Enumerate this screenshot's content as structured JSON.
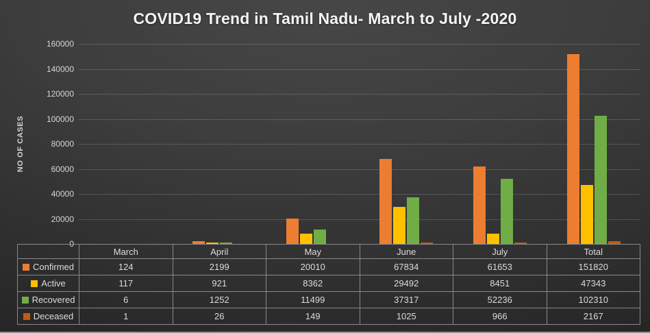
{
  "title": "COVID19 Trend in Tamil Nadu- March to July -2020",
  "chart_data": {
    "type": "bar",
    "title": "COVID19 Trend in Tamil Nadu- March to July -2020",
    "categories": [
      "March",
      "April",
      "May",
      "June",
      "July",
      "Total"
    ],
    "series": [
      {
        "name": "Confirmed",
        "color": "#ED7D31",
        "values": [
          124,
          2199,
          20010,
          67834,
          61653,
          151820
        ]
      },
      {
        "name": "Active",
        "color": "#FFC000",
        "values": [
          117,
          921,
          8362,
          29492,
          8451,
          47343
        ]
      },
      {
        "name": "Recovered",
        "color": "#70AD47",
        "values": [
          6,
          1252,
          11499,
          37317,
          52236,
          102310
        ]
      },
      {
        "name": "Deceased",
        "color": "#C55A11",
        "values": [
          1,
          26,
          149,
          1025,
          966,
          2167
        ]
      }
    ],
    "xlabel": "",
    "ylabel": "NO OF CASES",
    "ylim": [
      0,
      160000
    ],
    "yticks": [
      0,
      20000,
      40000,
      60000,
      80000,
      100000,
      120000,
      140000,
      160000
    ],
    "grid": true,
    "legend_position": "data-table-left",
    "data_table": true
  },
  "colors": {
    "background": "#3d3d3d",
    "text": "#dcdcdc",
    "gridline": "rgba(255,255,255,0.16)",
    "table_border": "#8a8a8a",
    "confirmed": "#ED7D31",
    "active": "#FFC000",
    "recovered": "#70AD47",
    "deceased": "#C55A11"
  }
}
